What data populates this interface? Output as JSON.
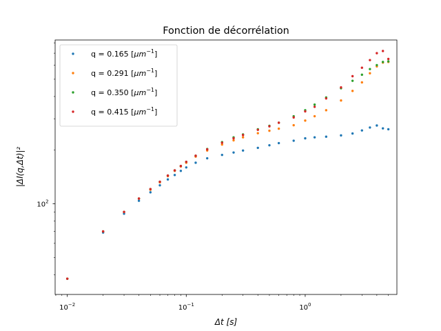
{
  "chart_data": {
    "type": "scatter",
    "title": "Fonction de décorrélation",
    "xlabel": "Δt [s]",
    "ylabel": "|ΔI(q,Δt)|²",
    "xscale": "log",
    "yscale": "log",
    "xlim": [
      0.0079,
      5.9
    ],
    "ylim": [
      31,
      830
    ],
    "x_ticks": [
      {
        "value": 0.01,
        "base": "10",
        "exp": "−2"
      },
      {
        "value": 0.1,
        "base": "10",
        "exp": "−1"
      },
      {
        "value": 1,
        "base": "10",
        "exp": "0"
      }
    ],
    "y_ticks": [
      {
        "value": 100,
        "base": "10",
        "exp": "2"
      }
    ],
    "grid": false,
    "legend_position": "upper left",
    "legend": [
      {
        "pre": "q = 0.165 [",
        "unit": "μm",
        "exp": "−1",
        "post": "]"
      },
      {
        "pre": "q = 0.291 [",
        "unit": "μm",
        "exp": "−1",
        "post": "]"
      },
      {
        "pre": "q = 0.350 [",
        "unit": "μm",
        "exp": "−1",
        "post": "]"
      },
      {
        "pre": "q = 0.415 [",
        "unit": "μm",
        "exp": "−1",
        "post": "]"
      }
    ],
    "series": [
      {
        "name": "q = 0.165 [μm⁻¹]",
        "color": "#1f77b4",
        "x": [
          0.01,
          0.02,
          0.03,
          0.04,
          0.05,
          0.06,
          0.07,
          0.08,
          0.09,
          0.1,
          0.12,
          0.15,
          0.2,
          0.25,
          0.3,
          0.4,
          0.5,
          0.6,
          0.8,
          1.0,
          1.2,
          1.5,
          2.0,
          2.5,
          3.0,
          3.5,
          4.0,
          4.5,
          5.0
        ],
        "values": [
          38,
          69,
          88,
          104,
          116,
          127,
          137,
          145,
          153,
          160,
          170,
          180,
          188,
          194,
          199,
          206,
          213,
          219,
          226,
          233,
          236,
          238,
          242,
          248,
          258,
          268,
          275,
          265,
          262
        ]
      },
      {
        "name": "q = 0.291 [μm⁻¹]",
        "color": "#ff7f0e",
        "x": [
          0.01,
          0.02,
          0.03,
          0.04,
          0.05,
          0.06,
          0.07,
          0.08,
          0.09,
          0.1,
          0.12,
          0.15,
          0.2,
          0.25,
          0.3,
          0.4,
          0.5,
          0.6,
          0.8,
          1.0,
          1.2,
          1.5,
          2.0,
          2.5,
          3.0,
          3.5,
          4.0,
          4.5,
          5.0
        ],
        "values": [
          38,
          70,
          90,
          107,
          120,
          132,
          143,
          153,
          162,
          170,
          184,
          199,
          215,
          227,
          236,
          249,
          257,
          264,
          276,
          293,
          310,
          335,
          380,
          430,
          480,
          540,
          590,
          620,
          625
        ]
      },
      {
        "name": "q = 0.350 [μm⁻¹]",
        "color": "#2ca02c",
        "x": [
          0.01,
          0.02,
          0.03,
          0.04,
          0.05,
          0.06,
          0.07,
          0.08,
          0.09,
          0.1,
          0.12,
          0.15,
          0.2,
          0.25,
          0.3,
          0.4,
          0.5,
          0.6,
          0.8,
          1.0,
          1.2,
          1.5,
          2.0,
          2.5,
          3.0,
          3.5,
          4.0,
          4.5,
          5.0
        ],
        "values": [
          38,
          70,
          90,
          107,
          121,
          133,
          144,
          154,
          163,
          172,
          186,
          203,
          222,
          236,
          245,
          262,
          274,
          285,
          310,
          335,
          360,
          395,
          445,
          490,
          530,
          570,
          600,
          625,
          630
        ]
      },
      {
        "name": "q = 0.415 [μm⁻¹]",
        "color": "#d62728",
        "x": [
          0.01,
          0.02,
          0.03,
          0.04,
          0.05,
          0.06,
          0.07,
          0.08,
          0.09,
          0.1,
          0.12,
          0.15,
          0.2,
          0.25,
          0.3,
          0.4,
          0.5,
          0.6,
          0.8,
          1.0,
          1.2,
          1.5,
          2.0,
          2.5,
          3.0,
          3.5,
          4.0,
          4.5,
          5.0
        ],
        "values": [
          38,
          70,
          90,
          107,
          121,
          133,
          144,
          154,
          163,
          172,
          186,
          202,
          220,
          233,
          243,
          260,
          272,
          285,
          305,
          330,
          350,
          390,
          450,
          520,
          580,
          640,
          700,
          720,
          650
        ]
      }
    ]
  }
}
